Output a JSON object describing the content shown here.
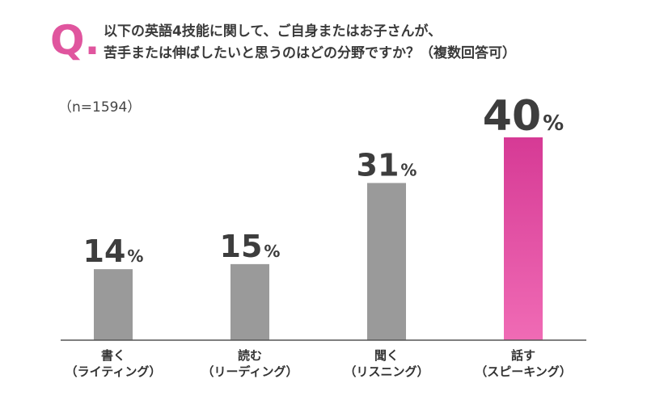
{
  "question": {
    "mark": "Q.",
    "line1": "以下の英語4技能に関して、ご自身またはお子さんが、",
    "line2": "苦手または伸ばしたいと思うのはどの分野ですか？（複数回答可）"
  },
  "sample": "（n=1594）",
  "colors": {
    "bar": "#9a9a9a",
    "highlight_top": "#d63a95",
    "highlight_bottom": "#f06bb5",
    "accent": "#e0559e"
  },
  "chart_data": {
    "type": "bar",
    "unit": "%",
    "categories": [
      [
        "書く",
        "（ライティング）"
      ],
      [
        "読む",
        "（リーディング）"
      ],
      [
        "聞く",
        "（リスニング）"
      ],
      [
        "話す",
        "（スピーキング）"
      ]
    ],
    "values": [
      14,
      15,
      31,
      40
    ],
    "highlight_index": 3,
    "ylim": [
      0,
      40
    ]
  }
}
